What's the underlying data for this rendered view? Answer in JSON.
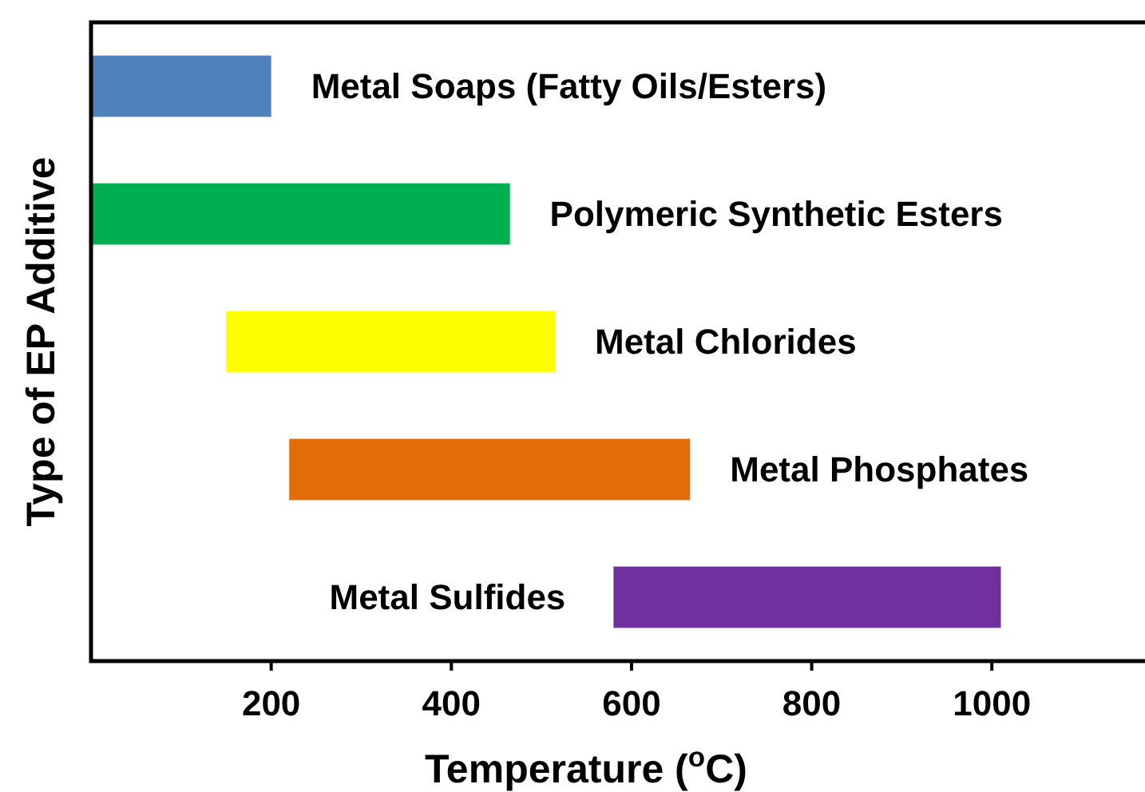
{
  "chart_data": {
    "type": "bar",
    "orientation": "horizontal",
    "xlabel": "Temperature ($^{o}$C)",
    "ylabel": "Type of EP Additive",
    "categories": [
      "Metal Soaps (Fatty Oils/Esters)",
      "Polymeric Synthetic Esters",
      "Metal Chlorides",
      "Metal Phosphates",
      "Metal Sulfides"
    ],
    "base": [
      0,
      0,
      150,
      220,
      580
    ],
    "values": [
      200,
      465,
      365,
      445,
      430
    ],
    "colors": [
      "#4f81bd",
      "#00b050",
      "#ffff00",
      "#e36c0a",
      "#7030a0"
    ],
    "xlim": [
      0,
      1170
    ],
    "xticks": [
      200,
      400,
      600,
      800,
      1000
    ],
    "grid": false,
    "tick_labels": "x"
  }
}
